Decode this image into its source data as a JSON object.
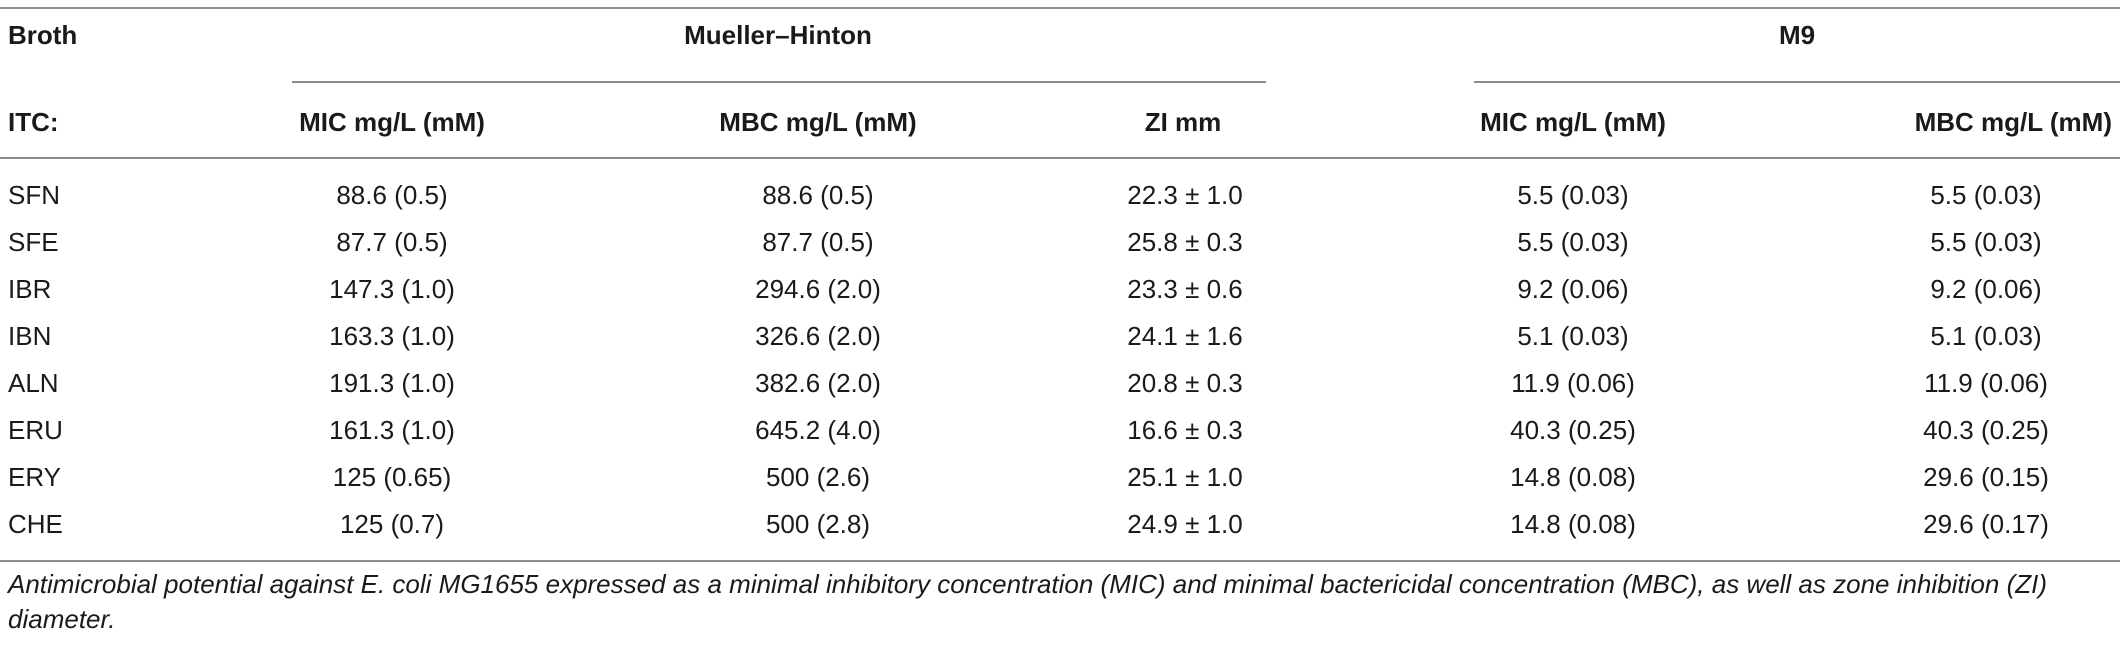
{
  "table": {
    "header": {
      "broth_label": "Broth",
      "itc_label": "ITC:",
      "group_mueller_hinton": "Mueller–Hinton",
      "group_m9": "M9",
      "columns": [
        "MIC mg/L (mM)",
        "MBC mg/L (mM)",
        "ZI mm",
        "MIC mg/L (mM)",
        "MBC mg/L (mM)"
      ]
    },
    "rows": [
      {
        "itc": "SFN",
        "mh_mic": "88.6 (0.5)",
        "mh_mbc": "88.6 (0.5)",
        "zi": "22.3 ± 1.0",
        "m9_mic": "5.5 (0.03)",
        "m9_mbc": "5.5 (0.03)"
      },
      {
        "itc": "SFE",
        "mh_mic": "87.7 (0.5)",
        "mh_mbc": "87.7 (0.5)",
        "zi": "25.8 ± 0.3",
        "m9_mic": "5.5 (0.03)",
        "m9_mbc": "5.5 (0.03)"
      },
      {
        "itc": "IBR",
        "mh_mic": "147.3 (1.0)",
        "mh_mbc": "294.6 (2.0)",
        "zi": "23.3 ± 0.6",
        "m9_mic": "9.2 (0.06)",
        "m9_mbc": "9.2 (0.06)"
      },
      {
        "itc": "IBN",
        "mh_mic": "163.3 (1.0)",
        "mh_mbc": "326.6 (2.0)",
        "zi": "24.1 ± 1.6",
        "m9_mic": "5.1 (0.03)",
        "m9_mbc": "5.1 (0.03)"
      },
      {
        "itc": "ALN",
        "mh_mic": "191.3 (1.0)",
        "mh_mbc": "382.6 (2.0)",
        "zi": "20.8 ± 0.3",
        "m9_mic": "11.9 (0.06)",
        "m9_mbc": "11.9 (0.06)"
      },
      {
        "itc": "ERU",
        "mh_mic": "161.3 (1.0)",
        "mh_mbc": "645.2 (4.0)",
        "zi": "16.6 ± 0.3",
        "m9_mic": "40.3 (0.25)",
        "m9_mbc": "40.3 (0.25)"
      },
      {
        "itc": "ERY",
        "mh_mic": "125 (0.65)",
        "mh_mbc": "500 (2.6)",
        "zi": "25.1 ± 1.0",
        "m9_mic": "14.8 (0.08)",
        "m9_mbc": "29.6 (0.15)"
      },
      {
        "itc": "CHE",
        "mh_mic": "125 (0.7)",
        "mh_mbc": "500 (2.8)",
        "zi": "24.9 ± 1.0",
        "m9_mic": "14.8 (0.08)",
        "m9_mbc": "29.6 (0.17)"
      }
    ]
  },
  "caption": "Antimicrobial potential against E. coli MG1655 expressed as a minimal inhibitory concentration (MIC) and minimal bactericidal concentration (MBC), as well as zone inhibition (ZI) diameter."
}
